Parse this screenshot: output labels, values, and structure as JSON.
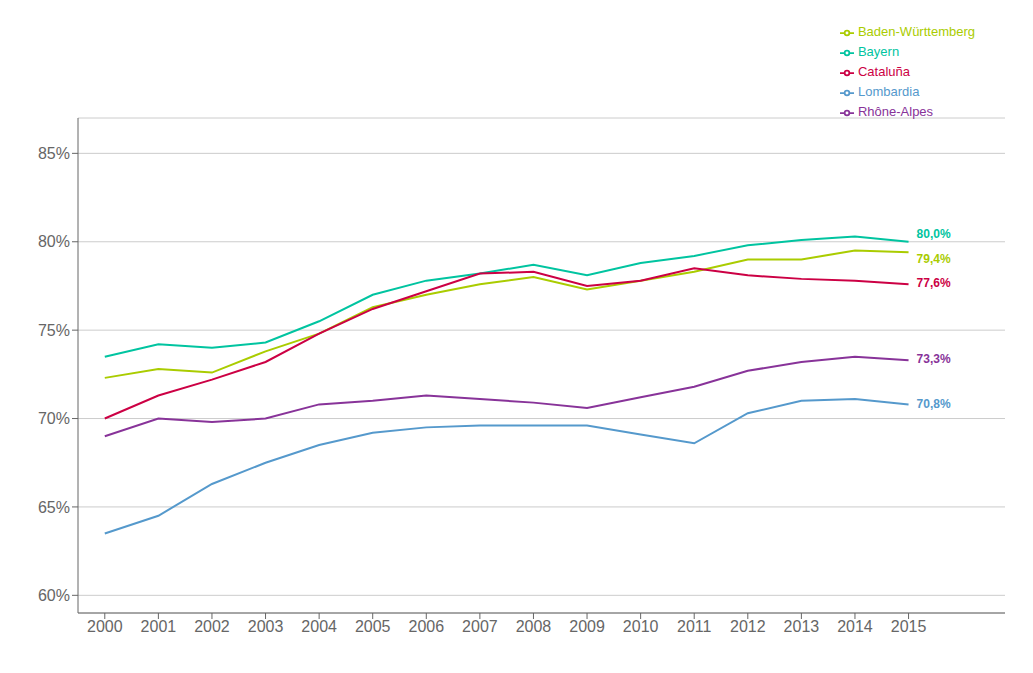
{
  "chart_data": {
    "type": "line",
    "x": [
      2000,
      2001,
      2002,
      2003,
      2004,
      2005,
      2006,
      2007,
      2008,
      2009,
      2010,
      2011,
      2012,
      2013,
      2014,
      2015
    ],
    "xlim": [
      1999.5,
      2016.8
    ],
    "xticks": [
      2000,
      2001,
      2002,
      2003,
      2004,
      2005,
      2006,
      2007,
      2008,
      2009,
      2010,
      2011,
      2012,
      2013,
      2014,
      2015
    ],
    "ylim": [
      59.0,
      87.0
    ],
    "yticks": [
      {
        "value": 60,
        "label": "60%"
      },
      {
        "value": 65,
        "label": "65%"
      },
      {
        "value": 70,
        "label": "70%"
      },
      {
        "value": 75,
        "label": "75%"
      },
      {
        "value": 80,
        "label": "80%"
      },
      {
        "value": 85,
        "label": "85%"
      }
    ],
    "grid": true,
    "legend": "upper right",
    "series": [
      {
        "name": "Bayern",
        "color": "#00C4A0",
        "values": [
          73.5,
          74.2,
          74.0,
          74.3,
          75.5,
          77.0,
          77.8,
          78.2,
          78.7,
          78.1,
          78.8,
          79.2,
          79.8,
          80.1,
          80.3,
          80.0
        ]
      },
      {
        "name": "Baden-Württemberg",
        "color": "#AACC00",
        "values": [
          72.3,
          72.8,
          72.6,
          73.8,
          74.8,
          76.3,
          77.0,
          77.6,
          78.0,
          77.3,
          77.8,
          78.3,
          79.0,
          79.0,
          79.5,
          79.4
        ]
      },
      {
        "name": "Cataluña",
        "color": "#CC0044",
        "values": [
          70.0,
          71.3,
          72.2,
          73.2,
          74.8,
          76.2,
          77.2,
          78.2,
          78.3,
          77.5,
          77.8,
          78.5,
          78.1,
          77.9,
          77.8,
          77.6
        ]
      },
      {
        "name": "Rhône-Alpes",
        "color": "#883399",
        "values": [
          69.0,
          70.0,
          69.8,
          70.0,
          70.8,
          71.0,
          71.3,
          71.1,
          70.9,
          70.6,
          71.2,
          71.8,
          72.7,
          73.2,
          73.5,
          73.3
        ]
      },
      {
        "name": "Lombardia",
        "color": "#5599CC",
        "values": [
          63.5,
          64.5,
          66.3,
          67.5,
          68.5,
          69.2,
          69.5,
          69.6,
          69.6,
          69.6,
          69.1,
          68.6,
          70.3,
          71.0,
          71.1,
          70.8
        ]
      }
    ],
    "annotations": [
      {
        "text": "80,0%",
        "x": 2015,
        "y": 80.0,
        "color": "#00C4A0"
      },
      {
        "text": "79,4%",
        "x": 2015,
        "y": 79.4,
        "color": "#AACC00"
      },
      {
        "text": "77,6%",
        "x": 2015,
        "y": 77.6,
        "color": "#CC0044"
      },
      {
        "text": "73,3%",
        "x": 2015,
        "y": 73.3,
        "color": "#883399"
      },
      {
        "text": "70,8%",
        "x": 2015,
        "y": 70.8,
        "color": "#5599CC"
      }
    ]
  }
}
